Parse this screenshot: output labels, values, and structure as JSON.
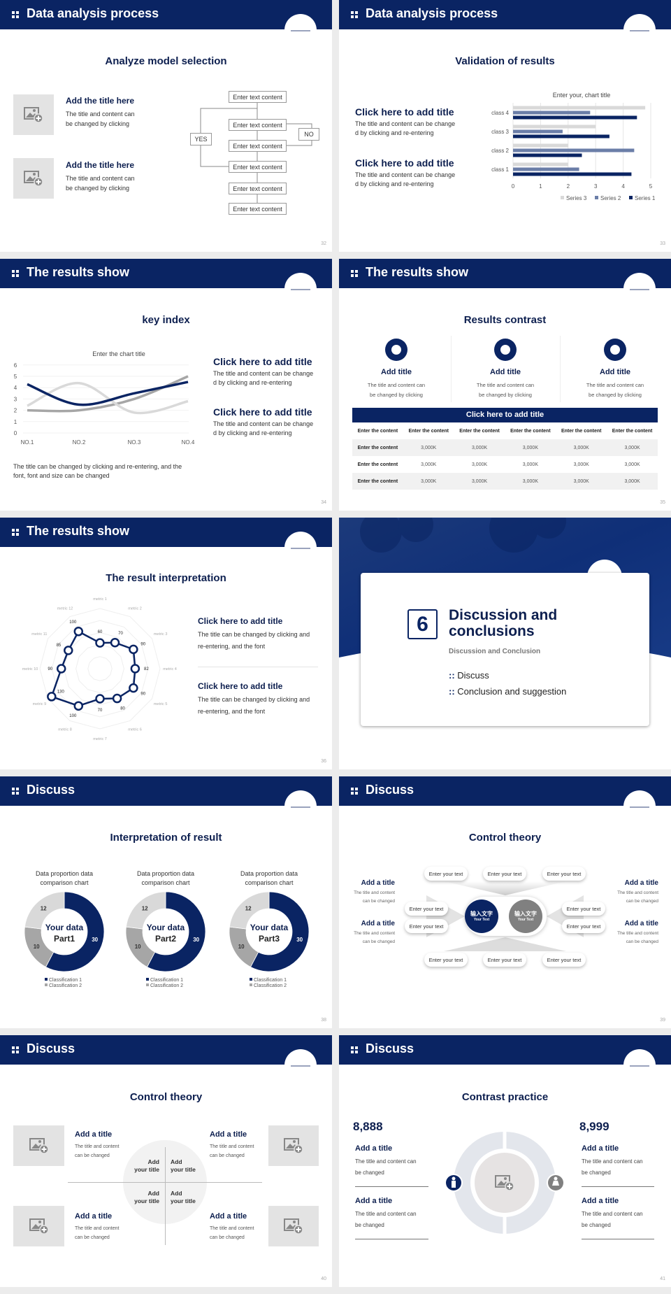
{
  "colors": {
    "navy": "#0a2463",
    "mid_gray": "#a6a6a6",
    "light_gray": "#d9d9d9",
    "series2": "#6b7ea8"
  },
  "s1": {
    "header": "Data analysis process",
    "title": "Analyze model selection",
    "items": [
      {
        "title": "Add the title here",
        "body": "The title and content can be changed by clicking"
      },
      {
        "title": "Add the title here",
        "body": "The title and content can be changed by clicking"
      }
    ],
    "flow": [
      "Enter text content",
      "Enter text content",
      "Enter text content",
      "Enter text content",
      "Enter text content",
      "Enter text content"
    ],
    "yes": "YES",
    "no": "NO",
    "page": "32"
  },
  "s2": {
    "header": "Data analysis process",
    "title": "Validation of results",
    "items": [
      {
        "title": "Click here to add title",
        "body1": "The title and content can be change",
        "body2": "d by clicking and re-entering"
      },
      {
        "title": "Click here to add title",
        "body1": "The title and content can be change",
        "body2": "d by clicking and re-entering"
      }
    ],
    "page": "33"
  },
  "s3": {
    "header": "The results show",
    "title": "key index",
    "items": [
      {
        "title": "Click here to add title",
        "body1": "The title and content can be change",
        "body2": "d by clicking and re-entering"
      },
      {
        "title": "Click here to add title",
        "body1": "The title and content can be change",
        "body2": "d by clicking and re-entering"
      }
    ],
    "note1": "The title can be changed by clicking and re-entering, and the",
    "note2": "font, font and size can be changed",
    "page": "34"
  },
  "s4": {
    "header": "The results show",
    "title": "Results contrast",
    "cards": [
      {
        "title": "Add title",
        "b1": "The title and content can",
        "b2": "be changed by clicking"
      },
      {
        "title": "Add title",
        "b1": "The title and content can",
        "b2": "be changed by clicking"
      },
      {
        "title": "Add title",
        "b1": "The title and content can",
        "b2": "be changed by clicking"
      }
    ],
    "table": {
      "caption": "Click here to add title",
      "header": [
        "Enter the content",
        "Enter the content",
        "Enter the content",
        "Enter the content",
        "Enter the content",
        "Enter the content"
      ],
      "rows": [
        [
          "Enter the content",
          "3,000K",
          "3,000K",
          "3,000K",
          "3,000K",
          "3,000K"
        ],
        [
          "Enter the content",
          "3,000K",
          "3,000K",
          "3,000K",
          "3,000K",
          "3,000K"
        ],
        [
          "Enter the content",
          "3,000K",
          "3,000K",
          "3,000K",
          "3,000K",
          "3,000K"
        ]
      ]
    },
    "page": "35"
  },
  "s5": {
    "header": "The results show",
    "title": "The result interpretation",
    "items": [
      {
        "title": "Click here to add  title",
        "b1": "The title can be changed by clicking and",
        "b2": "re-entering, and the font"
      },
      {
        "title": "Click here to add  title",
        "b1": "The title can be changed by clicking and",
        "b2": "re-entering, and the font"
      }
    ],
    "page": "36"
  },
  "s6": {
    "number": "6",
    "title1": "Discussion and",
    "title2": "conclusions",
    "subtitle": "Discussion and Conclusion",
    "bullets": [
      "Discuss",
      "Conclusion and suggestion"
    ],
    "page": "37"
  },
  "s7": {
    "header": "Discuss",
    "title": "Interpretation of result",
    "page": "38"
  },
  "s8": {
    "header": "Discuss",
    "title": "Control theory",
    "center": [
      {
        "cn": "输入文字",
        "en": "Your Text"
      },
      {
        "cn": "输入文字",
        "en": "Your Text"
      }
    ],
    "pill": "Enter your text",
    "side": [
      {
        "title": "Add a title",
        "b1": "The title and content",
        "b2": "can be changed"
      },
      {
        "title": "Add a title",
        "b1": "The title and content",
        "b2": "can be changed"
      },
      {
        "title": "Add a title",
        "b1": "The title and content",
        "b2": "can be changed"
      },
      {
        "title": "Add a title",
        "b1": "The title and content",
        "b2": "can be changed"
      }
    ],
    "page": "39"
  },
  "s9": {
    "header": "Discuss",
    "title": "Control theory",
    "items": [
      {
        "title": "Add a title",
        "b1": "The title and content",
        "b2": "can be changed"
      },
      {
        "title": "Add a title",
        "b1": "The title and content",
        "b2": "can be changed"
      },
      {
        "title": "Add a title",
        "b1": "The title and content",
        "b2": "can be changed"
      },
      {
        "title": "Add a title",
        "b1": "The title and content",
        "b2": "can be changed"
      }
    ],
    "quad": [
      [
        "Add",
        "your title"
      ],
      [
        "Add",
        "your title"
      ],
      [
        "Add",
        "your title"
      ],
      [
        "Add",
        "your title"
      ]
    ],
    "page": "40"
  },
  "s10": {
    "header": "Discuss",
    "title": "Contrast practice",
    "left": {
      "number": "8,888",
      "items": [
        {
          "title": "Add a title",
          "b1": "The title and content can",
          "b2": "be changed"
        },
        {
          "title": "Add a title",
          "b1": "The title and content can",
          "b2": "be changed"
        }
      ]
    },
    "right": {
      "number": "8,999",
      "items": [
        {
          "title": "Add a title",
          "b1": "The title and content can",
          "b2": "be changed"
        },
        {
          "title": "Add a title",
          "b1": "The title and content can",
          "b2": "be changed"
        }
      ]
    },
    "page": "41"
  },
  "chart_data": [
    {
      "type": "bar",
      "orientation": "horizontal",
      "title": "Enter your, chart title",
      "categories": [
        "class 1",
        "class 2",
        "class 3",
        "class 4"
      ],
      "series": [
        {
          "name": "Series 1",
          "values": [
            4.3,
            2.5,
            3.5,
            4.5
          ]
        },
        {
          "name": "Series 2",
          "values": [
            2.4,
            4.4,
            1.8,
            2.8
          ]
        },
        {
          "name": "Series 3",
          "values": [
            2.0,
            2.0,
            3.0,
            4.8
          ]
        }
      ],
      "xlim": [
        0,
        5
      ],
      "ticks": [
        "0",
        "1",
        "2",
        "3",
        "4",
        "5"
      ],
      "legend": "bottom",
      "grid": true
    },
    {
      "type": "line",
      "smooth": true,
      "title": "Enter the chart title",
      "categories": [
        "NO.1",
        "NO.2",
        "NO.3",
        "NO.4"
      ],
      "series": [
        {
          "values": [
            4.3,
            2.5,
            3.5,
            4.5
          ],
          "color": "#0a2463"
        },
        {
          "values": [
            2.4,
            4.4,
            1.8,
            2.8
          ],
          "color": "#d9d9d9"
        },
        {
          "values": [
            2.0,
            2.0,
            3.0,
            5.0
          ],
          "color": "#a6a6a6"
        }
      ],
      "ylim": [
        0,
        6
      ],
      "yticks": [
        "0",
        "1",
        "2",
        "3",
        "4",
        "5",
        "6"
      ],
      "grid": true
    },
    {
      "type": "radar",
      "categories": [
        "metric 1",
        "metric 2",
        "metric 3",
        "metric 4",
        "metric 5",
        "metric 6",
        "metric 7",
        "metric 8",
        "metric 9",
        "metric 10",
        "metric 11",
        "metric 12"
      ],
      "values": [
        60,
        70,
        90,
        82,
        90,
        80,
        70,
        100,
        130,
        90,
        85,
        100
      ],
      "rmax": 140
    },
    {
      "type": "pie",
      "donut": true,
      "charts": [
        {
          "title": [
            "Data proportion data",
            "comparison chart"
          ],
          "center": [
            "Your data",
            "Part1"
          ]
        },
        {
          "title": [
            "Data proportion data",
            "comparison chart"
          ],
          "center": [
            "Your data",
            "Part2"
          ]
        },
        {
          "title": [
            "Data proportion data",
            "comparison chart"
          ],
          "center": [
            "Your data",
            "Part3"
          ]
        }
      ],
      "values": [
        30,
        10,
        12
      ],
      "labels": [
        "30",
        "10",
        "12"
      ],
      "legend": [
        "Classification 1",
        "Classification 2"
      ]
    }
  ]
}
